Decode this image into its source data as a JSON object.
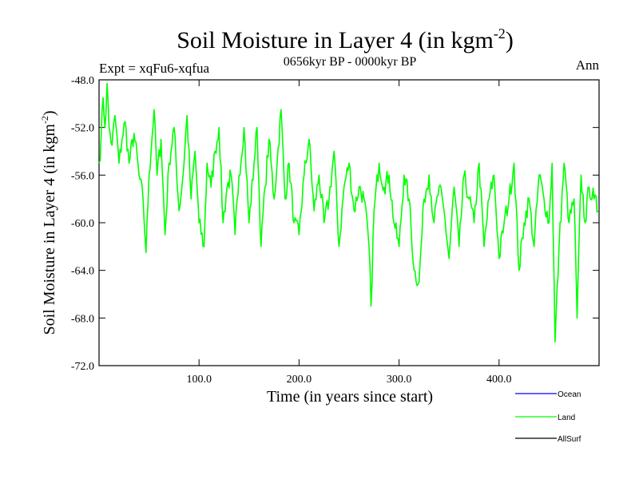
{
  "chart_data": {
    "type": "line",
    "title": {
      "main": "Soil Moisture in Layer 4 (in kgm",
      "sup": "-2",
      "close": ")"
    },
    "subtitle": "0656kyr BP - 0000kyr BP",
    "left_label": "Expt = xqFu6-xqfua",
    "right_label": "Ann",
    "xlabel": "Time (in years since start)",
    "ylabel": {
      "main": "Soil Moisture in Layer 4 (in kgm",
      "sup": "-2",
      "close": ")"
    },
    "xlim": [
      0,
      500
    ],
    "ylim": [
      -72,
      -48
    ],
    "xticks": [
      100,
      200,
      300,
      400
    ],
    "xtick_labels": [
      "100.0",
      "200.0",
      "300.0",
      "400.0"
    ],
    "yticks": [
      -48,
      -52,
      -56,
      -60,
      -64,
      -68,
      -72
    ],
    "ytick_labels": [
      "-48.0",
      "-52.0",
      "-56.0",
      "-60.0",
      "-64.0",
      "-68.0",
      "-72.0"
    ],
    "legend": [
      {
        "name": "Ocean",
        "color": "#0000ff"
      },
      {
        "name": "Land",
        "color": "#00ff00"
      },
      {
        "name": "AllSurf",
        "color": "#000000"
      }
    ],
    "series": [
      {
        "name": "Land",
        "color": "#00ff00",
        "x": [
          0,
          2,
          4,
          6,
          8,
          10,
          13,
          16,
          20,
          23,
          26,
          30,
          35,
          40,
          44,
          47,
          50,
          55,
          58,
          62,
          66,
          70,
          75,
          80,
          84,
          88,
          92,
          96,
          100,
          105,
          108,
          112,
          116,
          120,
          124,
          128,
          132,
          136,
          140,
          145,
          150,
          155,
          158,
          162,
          166,
          170,
          175,
          178,
          182,
          186,
          190,
          195,
          200,
          205,
          210,
          215,
          220,
          225,
          230,
          235,
          240,
          245,
          250,
          255,
          260,
          265,
          270,
          272,
          275,
          280,
          285,
          290,
          295,
          300,
          305,
          310,
          315,
          320,
          325,
          330,
          335,
          340,
          345,
          350,
          355,
          360,
          365,
          370,
          375,
          380,
          385,
          390,
          395,
          400,
          405,
          410,
          415,
          420,
          425,
          430,
          435,
          440,
          445,
          450,
          453,
          456,
          460,
          465,
          470,
          475,
          478,
          482,
          486,
          490,
          495,
          499
        ],
        "values": [
          -55,
          -53,
          -49.5,
          -52,
          -48.3,
          -52,
          -53.5,
          -51,
          -55,
          -53,
          -51.5,
          -55,
          -52.5,
          -56,
          -58,
          -62.5,
          -56,
          -50.5,
          -56,
          -53,
          -61,
          -55,
          -52,
          -59,
          -56,
          -51,
          -58,
          -54,
          -60,
          -62,
          -55,
          -57,
          -54,
          -52,
          -60,
          -57,
          -56,
          -61,
          -56,
          -52,
          -60,
          -55,
          -52,
          -62,
          -57,
          -53,
          -58,
          -55,
          -50.5,
          -58,
          -55,
          -60,
          -61,
          -56,
          -53,
          -59,
          -56,
          -60,
          -58,
          -54,
          -62,
          -57,
          -55,
          -59,
          -57,
          -58,
          -62,
          -67,
          -59,
          -55,
          -57,
          -56,
          -60,
          -62,
          -56,
          -58,
          -64,
          -65,
          -58,
          -56,
          -60,
          -57,
          -59,
          -63,
          -57,
          -62,
          -56,
          -58,
          -60,
          -55,
          -62,
          -58,
          -56,
          -63,
          -60,
          -58,
          -55,
          -64,
          -60,
          -58,
          -62,
          -56,
          -58,
          -60,
          -55,
          -70,
          -62,
          -55,
          -60,
          -58,
          -68,
          -56,
          -60,
          -57,
          -58,
          -59
        ]
      }
    ]
  }
}
